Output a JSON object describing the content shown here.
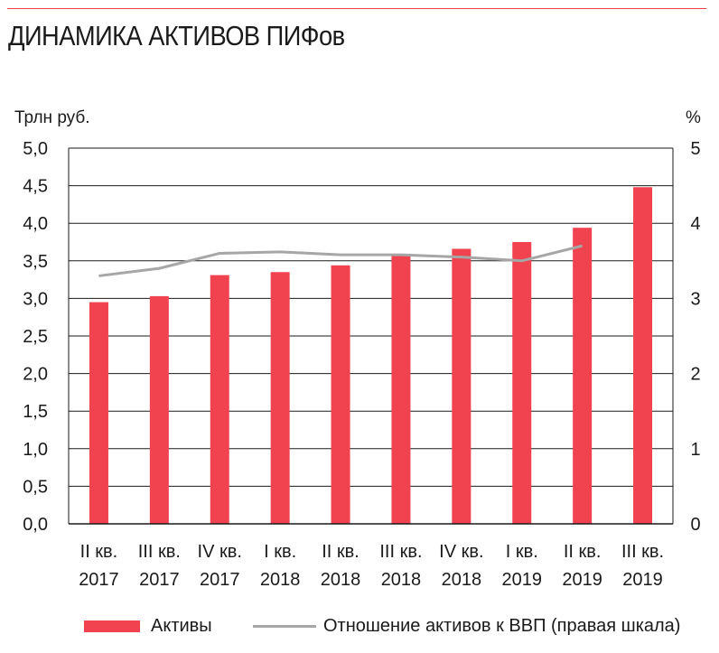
{
  "title": "ДИНАМИКА АКТИВОВ ПИФов",
  "chart_data": {
    "type": "bar",
    "ylabel_left": "Трлн руб.",
    "ylabel_right": "%",
    "ylim_left": [
      0,
      5
    ],
    "ylim_right": [
      0,
      5
    ],
    "yticks_left": [
      "0,0",
      "0,5",
      "1,0",
      "1,5",
      "2,0",
      "2,5",
      "3,0",
      "3,5",
      "4,0",
      "4,5",
      "5,0"
    ],
    "yticks_right": [
      "0",
      "1",
      "2",
      "3",
      "4",
      "5"
    ],
    "grid": true,
    "categories": [
      {
        "line1": "II кв.",
        "line2": "2017"
      },
      {
        "line1": "III кв.",
        "line2": "2017"
      },
      {
        "line1": "IV кв.",
        "line2": "2017"
      },
      {
        "line1": "I кв.",
        "line2": "2018"
      },
      {
        "line1": "II кв.",
        "line2": "2018"
      },
      {
        "line1": "III кв.",
        "line2": "2018"
      },
      {
        "line1": "IV кв.",
        "line2": "2018"
      },
      {
        "line1": "I кв.",
        "line2": "2019"
      },
      {
        "line1": "II кв.",
        "line2": "2019"
      },
      {
        "line1": "III кв.",
        "line2": "2019"
      }
    ],
    "series": [
      {
        "name": "Активы",
        "type": "bar",
        "axis": "left",
        "color": "#f0434f",
        "values": [
          2.95,
          3.03,
          3.31,
          3.35,
          3.44,
          3.58,
          3.66,
          3.75,
          3.94,
          4.48
        ]
      },
      {
        "name": "Отношение активов к ВВП (правая шкала)",
        "type": "line",
        "axis": "right",
        "color": "#a6a6a6",
        "values": [
          3.3,
          3.4,
          3.6,
          3.62,
          3.58,
          3.58,
          3.55,
          3.5,
          3.7,
          null
        ]
      }
    ],
    "legend_position": "bottom"
  }
}
